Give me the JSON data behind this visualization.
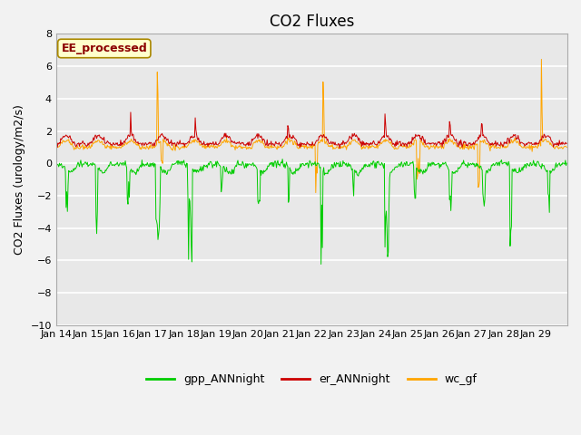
{
  "title": "CO2 Fluxes",
  "ylabel": "CO2 Fluxes (urology/m2/s)",
  "ylim": [
    -10,
    8
  ],
  "yticks": [
    -10,
    -8,
    -6,
    -4,
    -2,
    0,
    2,
    4,
    6,
    8
  ],
  "colors": {
    "gpp": "#00CC00",
    "er": "#CC0000",
    "wc": "#FFA500"
  },
  "legend_labels": [
    "gpp_ANNnight",
    "er_ANNnight",
    "wc_gf"
  ],
  "annotation_text": "EE_processed",
  "annotation_color": "#8B0000",
  "annotation_bg": "#FFFFCC",
  "annotation_border": "#AA8800",
  "x_tick_labels": [
    "Jan 14",
    "Jan 15",
    "Jan 16",
    "Jan 17",
    "Jan 18",
    "Jan 19",
    "Jan 20",
    "Jan 21",
    "Jan 22",
    "Jan 23",
    "Jan 24",
    "Jan 25",
    "Jan 26",
    "Jan 27",
    "Jan 28",
    "Jan 29"
  ],
  "background_color": "#E8E8E8",
  "grid_color": "#FFFFFF",
  "title_fontsize": 12,
  "label_fontsize": 9,
  "tick_fontsize": 8,
  "fig_facecolor": "#F2F2F2"
}
